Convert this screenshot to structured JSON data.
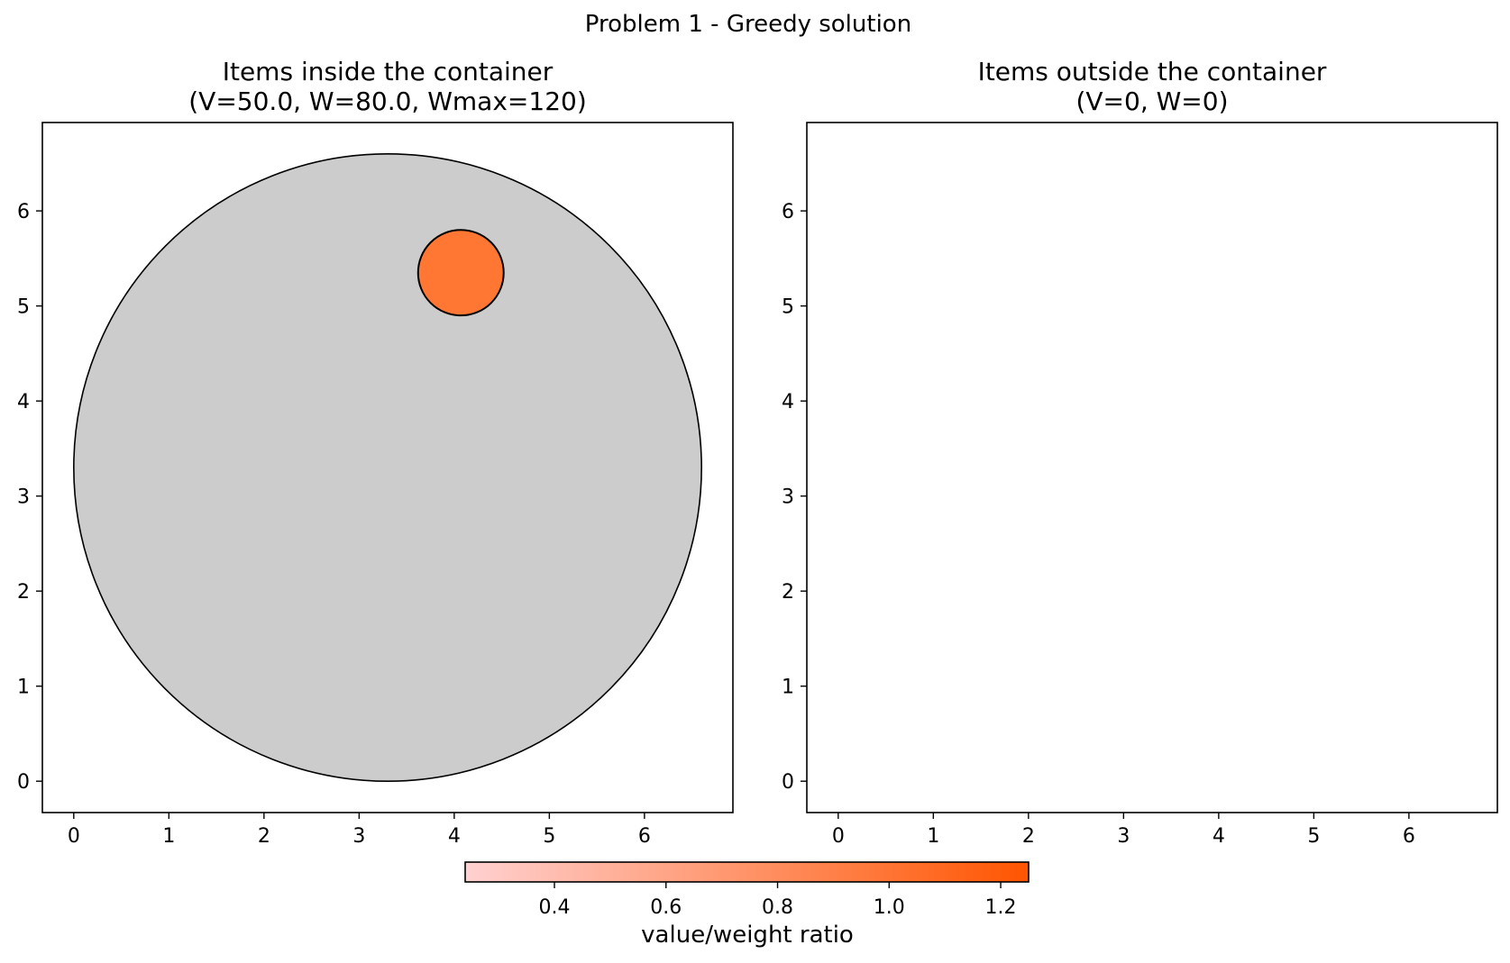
{
  "figure": {
    "suptitle": "Problem 1 - Greedy solution"
  },
  "chart_data": [
    {
      "type": "scatter",
      "panel": "inside",
      "title_line1": "Items inside the container",
      "title_line2": "(V=50.0, W=80.0, Wmax=120)",
      "xlim": [
        -0.33,
        6.93
      ],
      "ylim": [
        -0.33,
        6.93
      ],
      "xticks": [
        0,
        1,
        2,
        3,
        4,
        5,
        6
      ],
      "yticks": [
        0,
        1,
        2,
        3,
        4,
        5,
        6
      ],
      "container": {
        "cx": 3.3,
        "cy": 3.3,
        "r": 3.3,
        "fill": "#cccccc",
        "stroke": "#000000"
      },
      "items": [
        {
          "cx": 4.07,
          "cy": 5.35,
          "r": 0.45,
          "ratio": 0.94,
          "fill": "#ff7733"
        }
      ]
    },
    {
      "type": "scatter",
      "panel": "outside",
      "title_line1": "Items outside the container",
      "title_line2": "(V=0, W=0)",
      "xlim": [
        -0.33,
        6.93
      ],
      "ylim": [
        -0.33,
        6.93
      ],
      "xticks": [
        0,
        1,
        2,
        3,
        4,
        5,
        6
      ],
      "yticks": [
        0,
        1,
        2,
        3,
        4,
        5,
        6
      ],
      "items": []
    }
  ],
  "colorbar": {
    "label": "value/weight ratio",
    "range": [
      0.24,
      1.25
    ],
    "ticks": [
      0.4,
      0.6,
      0.8,
      1.0,
      1.2
    ],
    "tick_labels": [
      "0.4",
      "0.6",
      "0.8",
      "1.0",
      "1.2"
    ],
    "color_low": "#ffd1d1",
    "color_high": "#ff5500"
  }
}
